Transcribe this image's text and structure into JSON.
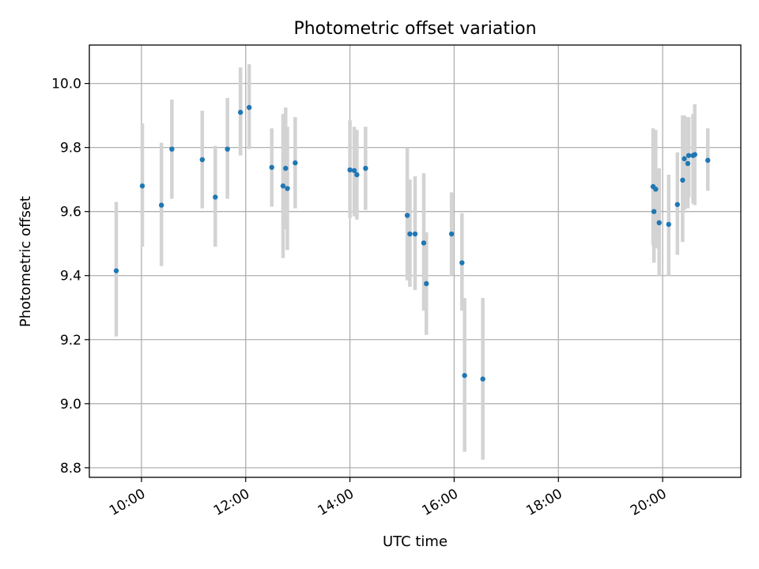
{
  "chart_data": {
    "type": "scatter",
    "title": "Photometric offset variation",
    "xlabel": "UTC time",
    "ylabel": "Photometric offset",
    "x_unit": "hours UTC",
    "xlim": [
      9.0,
      21.5
    ],
    "ylim": [
      8.77,
      10.12
    ],
    "x_ticks": [
      {
        "value": 10,
        "label": "10:00"
      },
      {
        "value": 12,
        "label": "12:00"
      },
      {
        "value": 14,
        "label": "14:00"
      },
      {
        "value": 16,
        "label": "16:00"
      },
      {
        "value": 18,
        "label": "18:00"
      },
      {
        "value": 20,
        "label": "20:00"
      }
    ],
    "y_ticks": [
      {
        "value": 8.8,
        "label": "8.8"
      },
      {
        "value": 9.0,
        "label": "9.0"
      },
      {
        "value": 9.2,
        "label": "9.2"
      },
      {
        "value": 9.4,
        "label": "9.4"
      },
      {
        "value": 9.6,
        "label": "9.6"
      },
      {
        "value": 9.8,
        "label": "9.8"
      },
      {
        "value": 10.0,
        "label": "10.0"
      }
    ],
    "grid": true,
    "point_color": "#1f77b4",
    "errorbar_color": "#d3d3d3",
    "points": [
      {
        "x": "09:31",
        "y": 9.415,
        "ylow": 9.21,
        "yhigh": 9.63
      },
      {
        "x": "10:01",
        "y": 9.68,
        "ylow": 9.49,
        "yhigh": 9.875
      },
      {
        "x": "10:23",
        "y": 9.62,
        "ylow": 9.43,
        "yhigh": 9.815
      },
      {
        "x": "10:35",
        "y": 9.795,
        "ylow": 9.64,
        "yhigh": 9.95
      },
      {
        "x": "11:10",
        "y": 9.762,
        "ylow": 9.61,
        "yhigh": 9.915
      },
      {
        "x": "11:25",
        "y": 9.645,
        "ylow": 9.49,
        "yhigh": 9.805
      },
      {
        "x": "11:39",
        "y": 9.795,
        "ylow": 9.64,
        "yhigh": 9.955
      },
      {
        "x": "11:54",
        "y": 9.91,
        "ylow": 9.775,
        "yhigh": 10.05
      },
      {
        "x": "12:04",
        "y": 9.925,
        "ylow": 9.795,
        "yhigh": 10.06
      },
      {
        "x": "12:30",
        "y": 9.738,
        "ylow": 9.615,
        "yhigh": 9.86
      },
      {
        "x": "12:43",
        "y": 9.68,
        "ylow": 9.455,
        "yhigh": 9.905
      },
      {
        "x": "12:46",
        "y": 9.735,
        "ylow": 9.545,
        "yhigh": 9.925
      },
      {
        "x": "12:48",
        "y": 9.672,
        "ylow": 9.48,
        "yhigh": 9.865
      },
      {
        "x": "12:57",
        "y": 9.752,
        "ylow": 9.61,
        "yhigh": 9.895
      },
      {
        "x": "14:00",
        "y": 9.73,
        "ylow": 9.58,
        "yhigh": 9.885
      },
      {
        "x": "14:05",
        "y": 9.728,
        "ylow": 9.585,
        "yhigh": 9.865
      },
      {
        "x": "14:08",
        "y": 9.715,
        "ylow": 9.575,
        "yhigh": 9.855
      },
      {
        "x": "14:18",
        "y": 9.735,
        "ylow": 9.605,
        "yhigh": 9.865
      },
      {
        "x": "15:06",
        "y": 9.588,
        "ylow": 9.385,
        "yhigh": 9.8
      },
      {
        "x": "15:09",
        "y": 9.53,
        "ylow": 9.365,
        "yhigh": 9.7
      },
      {
        "x": "15:15",
        "y": 9.53,
        "ylow": 9.355,
        "yhigh": 9.71
      },
      {
        "x": "15:25",
        "y": 9.502,
        "ylow": 9.29,
        "yhigh": 9.72
      },
      {
        "x": "15:28",
        "y": 9.375,
        "ylow": 9.215,
        "yhigh": 9.535
      },
      {
        "x": "15:57",
        "y": 9.53,
        "ylow": 9.4,
        "yhigh": 9.66
      },
      {
        "x": "16:09",
        "y": 9.44,
        "ylow": 9.29,
        "yhigh": 9.595
      },
      {
        "x": "16:12",
        "y": 9.088,
        "ylow": 8.85,
        "yhigh": 9.33
      },
      {
        "x": "16:33",
        "y": 9.077,
        "ylow": 8.825,
        "yhigh": 9.33
      },
      {
        "x": "19:49",
        "y": 9.678,
        "ylow": 9.495,
        "yhigh": 9.86
      },
      {
        "x": "19:50",
        "y": 9.6,
        "ylow": 9.44,
        "yhigh": 9.76
      },
      {
        "x": "19:52",
        "y": 9.67,
        "ylow": 9.485,
        "yhigh": 9.855
      },
      {
        "x": "19:56",
        "y": 9.565,
        "ylow": 9.4,
        "yhigh": 9.735
      },
      {
        "x": "20:07",
        "y": 9.56,
        "ylow": 9.4,
        "yhigh": 9.715
      },
      {
        "x": "20:17",
        "y": 9.622,
        "ylow": 9.465,
        "yhigh": 9.785
      },
      {
        "x": "20:23",
        "y": 9.698,
        "ylow": 9.505,
        "yhigh": 9.9
      },
      {
        "x": "20:25",
        "y": 9.765,
        "ylow": 9.605,
        "yhigh": 9.9
      },
      {
        "x": "20:29",
        "y": 9.75,
        "ylow": 9.61,
        "yhigh": 9.895
      },
      {
        "x": "20:30",
        "y": 9.775,
        "ylow": 9.645,
        "yhigh": 9.895
      },
      {
        "x": "20:35",
        "y": 9.775,
        "ylow": 9.625,
        "yhigh": 9.905
      },
      {
        "x": "20:37",
        "y": 9.778,
        "ylow": 9.62,
        "yhigh": 9.935
      },
      {
        "x": "20:52",
        "y": 9.76,
        "ylow": 9.665,
        "yhigh": 9.86
      }
    ]
  }
}
